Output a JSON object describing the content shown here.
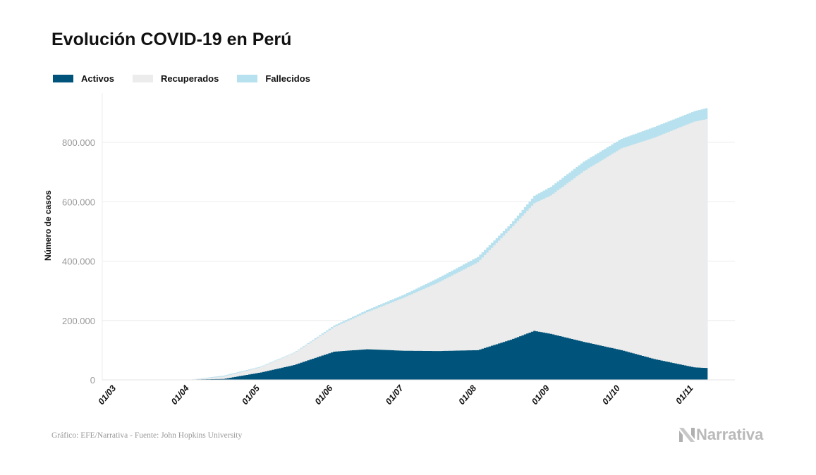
{
  "title": "Evolución COVID-19 en Perú",
  "footer": "Gráfico: EFE/Narrativa - Fuente: John Hopkins University",
  "logo": "Narrativa",
  "chart_data": {
    "type": "area",
    "stacked": true,
    "title": "Evolución COVID-19 en Perú",
    "ylabel": "Número de casos",
    "xlabel": "",
    "ylim": [
      0,
      900000
    ],
    "yticks": [
      0,
      200000,
      400000,
      600000,
      800000
    ],
    "ytick_labels": [
      "0",
      "200.000",
      "400.000",
      "600.000",
      "800.000"
    ],
    "xticks": [
      "01/03",
      "01/04",
      "01/05",
      "01/06",
      "01/07",
      "01/08",
      "01/09",
      "01/10",
      "01/11"
    ],
    "grid": "horizontal",
    "legend_placement": "top-left",
    "x": [
      "01/03",
      "15/03",
      "01/04",
      "15/04",
      "01/05",
      "15/05",
      "01/06",
      "15/06",
      "01/07",
      "15/07",
      "01/08",
      "15/08",
      "25/08",
      "01/09",
      "15/09",
      "01/10",
      "15/10",
      "01/11",
      "06/11"
    ],
    "series": [
      {
        "name": "Activos",
        "color": "#00537a",
        "values": [
          0,
          0,
          1000,
          3000,
          25000,
          50000,
          95000,
          103000,
          98000,
          97000,
          100000,
          135000,
          165000,
          155000,
          128000,
          100000,
          70000,
          42000,
          40000
        ]
      },
      {
        "name": "Recuperados",
        "color": "#ececec",
        "values": [
          0,
          0,
          0,
          8000,
          18000,
          40000,
          83000,
          125000,
          180000,
          230000,
          296000,
          375000,
          430000,
          466000,
          575000,
          680000,
          746000,
          828000,
          838000
        ]
      },
      {
        "name": "Fallecidos",
        "color": "#b7e1ee",
        "values": [
          0,
          0,
          0,
          3000,
          2000,
          2000,
          5000,
          7000,
          10000,
          15000,
          18000,
          15000,
          25000,
          29000,
          32000,
          32000,
          36000,
          35000,
          37000
        ]
      }
    ]
  }
}
